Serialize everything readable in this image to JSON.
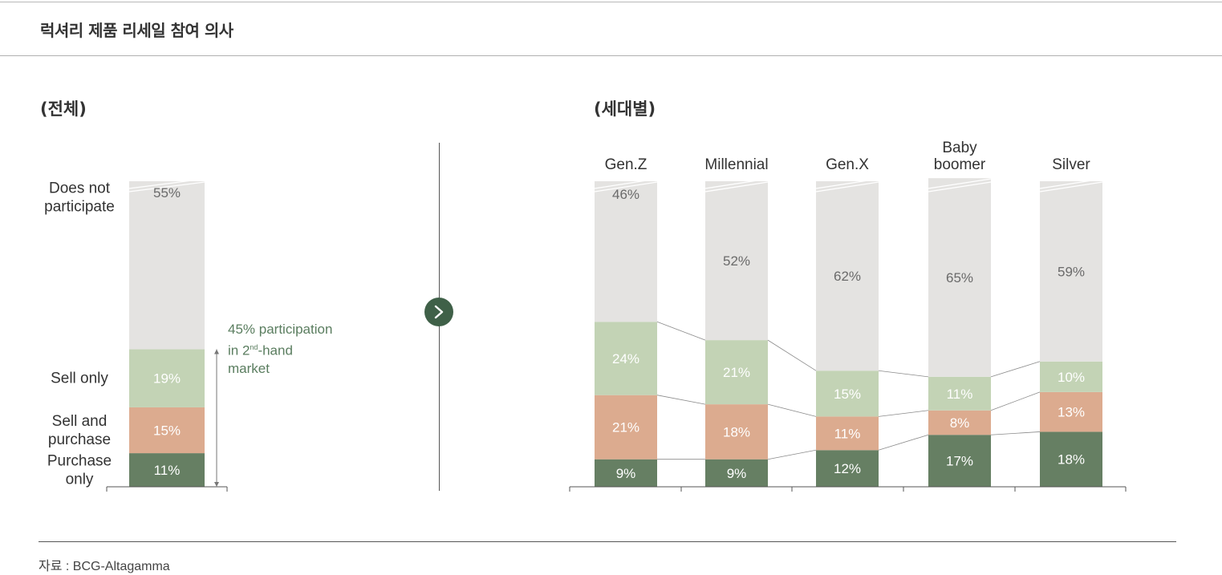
{
  "title": "럭셔리 제품 리세일 참여 의사",
  "left_subtitle": "(전체)",
  "right_subtitle": "(세대별)",
  "annotation": {
    "line1": "45% participation",
    "line2_pre": "in 2",
    "line2_sup": "nd",
    "line2_post": "-hand",
    "line3": "market"
  },
  "source": "자료 : BCG-Altagamma",
  "colors": {
    "does_not": "#e4e3e1",
    "sell_only": "#c3d3b5",
    "sell_purchase": "#dcab8f",
    "purchase_only": "#667f63",
    "accent": "#3f6048"
  },
  "chart_data": [
    {
      "type": "bar",
      "stacked": true,
      "categories": [
        "(전체)"
      ],
      "series": [
        {
          "name": "Purchase only",
          "values": [
            11
          ]
        },
        {
          "name": "Sell and purchase",
          "values": [
            15
          ]
        },
        {
          "name": "Sell only",
          "values": [
            19
          ]
        },
        {
          "name": "Does not participate",
          "values": [
            55
          ]
        }
      ],
      "series_labels": [
        [
          "Purchase",
          "only"
        ],
        [
          "Sell and",
          "purchase"
        ],
        [
          "Sell only"
        ],
        [
          "Does not",
          "participate"
        ]
      ]
    },
    {
      "type": "bar",
      "stacked": true,
      "categories": [
        "Gen.Z",
        "Millennial",
        "Gen.X",
        "Baby boomer",
        "Silver"
      ],
      "category_labels": [
        [
          "Gen.Z"
        ],
        [
          "Millennial"
        ],
        [
          "Gen.X"
        ],
        [
          "Baby",
          "boomer"
        ],
        [
          "Silver"
        ]
      ],
      "series": [
        {
          "values": [
            9,
            9,
            12,
            17,
            18
          ]
        },
        {
          "values": [
            21,
            18,
            11,
            8,
            13
          ]
        },
        {
          "values": [
            24,
            21,
            15,
            11,
            10
          ]
        },
        {
          "values": [
            46,
            52,
            62,
            65,
            59
          ]
        }
      ]
    }
  ]
}
